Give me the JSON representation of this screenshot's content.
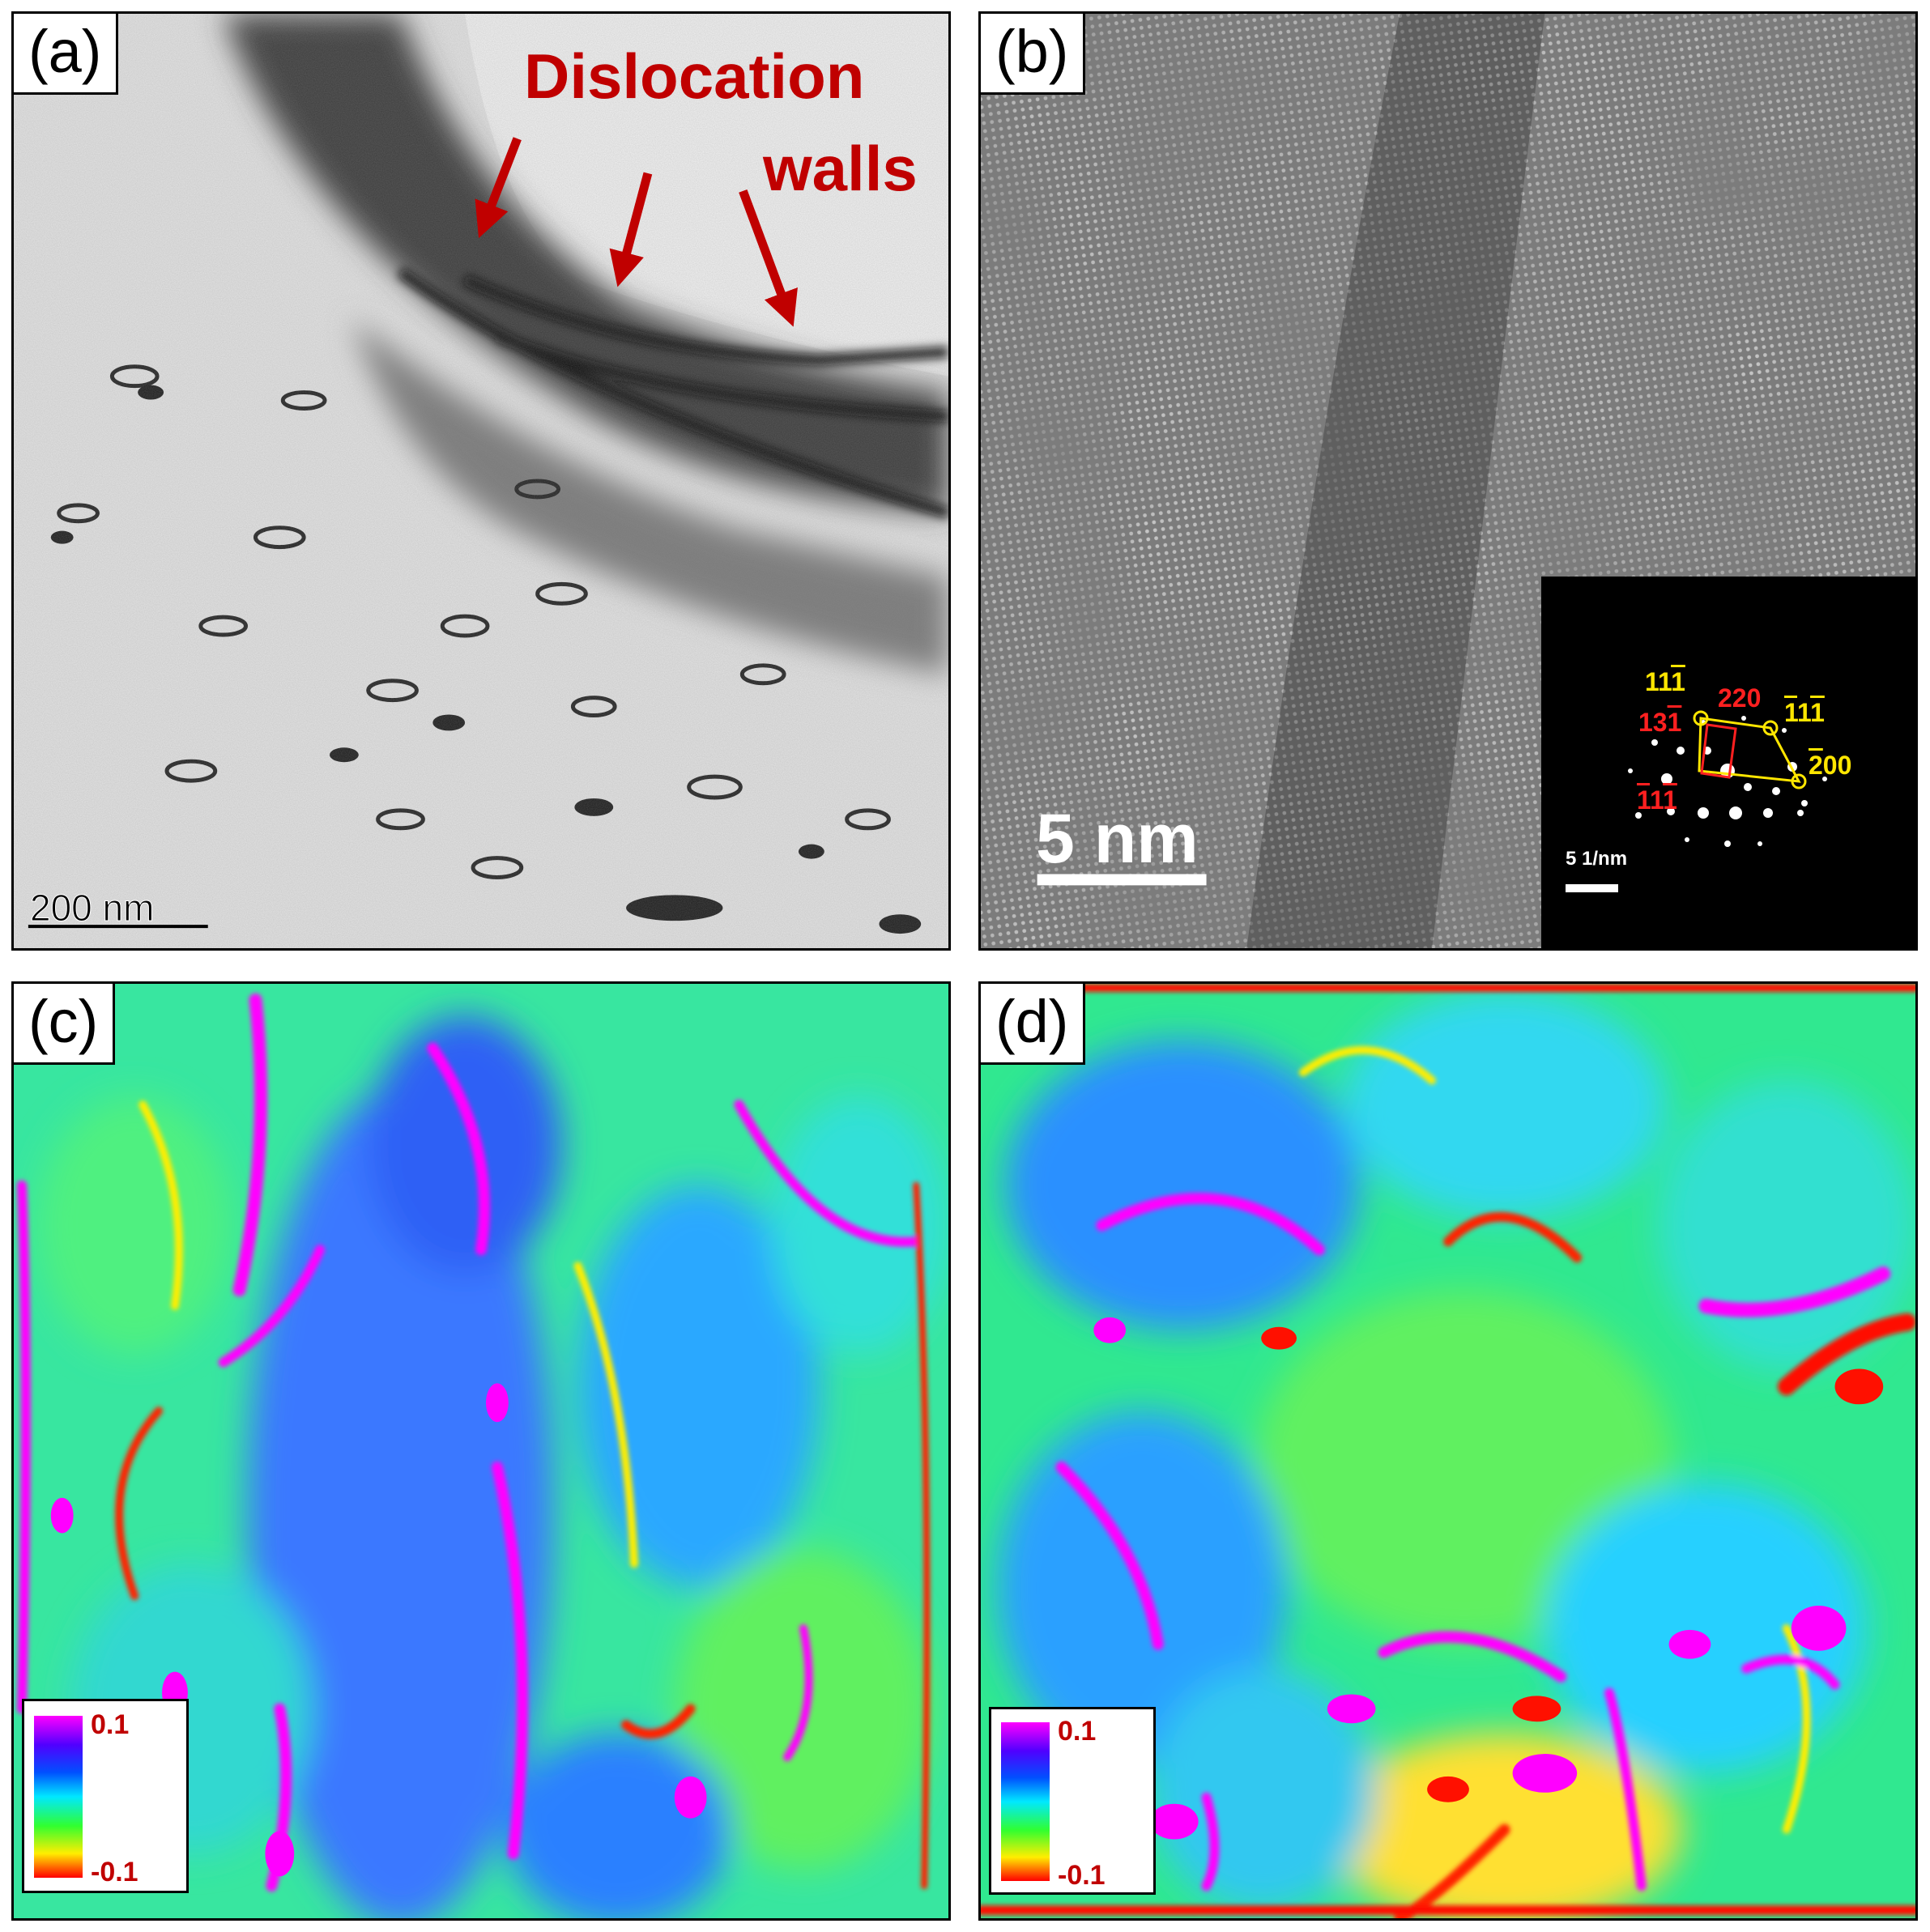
{
  "panels": {
    "a": {
      "label": "(a)",
      "annotation_line1": "Dislocation",
      "annotation_line2": "walls",
      "scale_bar": "200 nm"
    },
    "b": {
      "label": "(b)",
      "scale_bar": "5 nm",
      "inset": {
        "scale_bar": "5 1/nm",
        "spots": {
          "s1": {
            "pre": "11",
            "bar": "1",
            "post": ""
          },
          "s2": {
            "pre": "",
            "bar": "1",
            "post": "1"
          },
          "s2b": {
            "bar": "1"
          },
          "s3": {
            "pre": "",
            "bar": "2",
            "post": "00"
          },
          "s4": {
            "text": "220"
          },
          "s5": {
            "pre": "13",
            "bar": "1",
            "post": ""
          },
          "s6": {
            "pre": "",
            "bar": "1",
            "post": "1"
          },
          "s6b": {
            "bar": "1"
          }
        }
      }
    },
    "c": {
      "label": "(c)",
      "legend": {
        "max": "0.1",
        "min": "-0.1"
      }
    },
    "d": {
      "label": "(d)",
      "legend": {
        "max": "0.1",
        "min": "-0.1"
      }
    }
  },
  "colors": {
    "annotation_red": "#c00000",
    "inset_yellow": "#ffe600",
    "inset_red": "#ff2020"
  }
}
